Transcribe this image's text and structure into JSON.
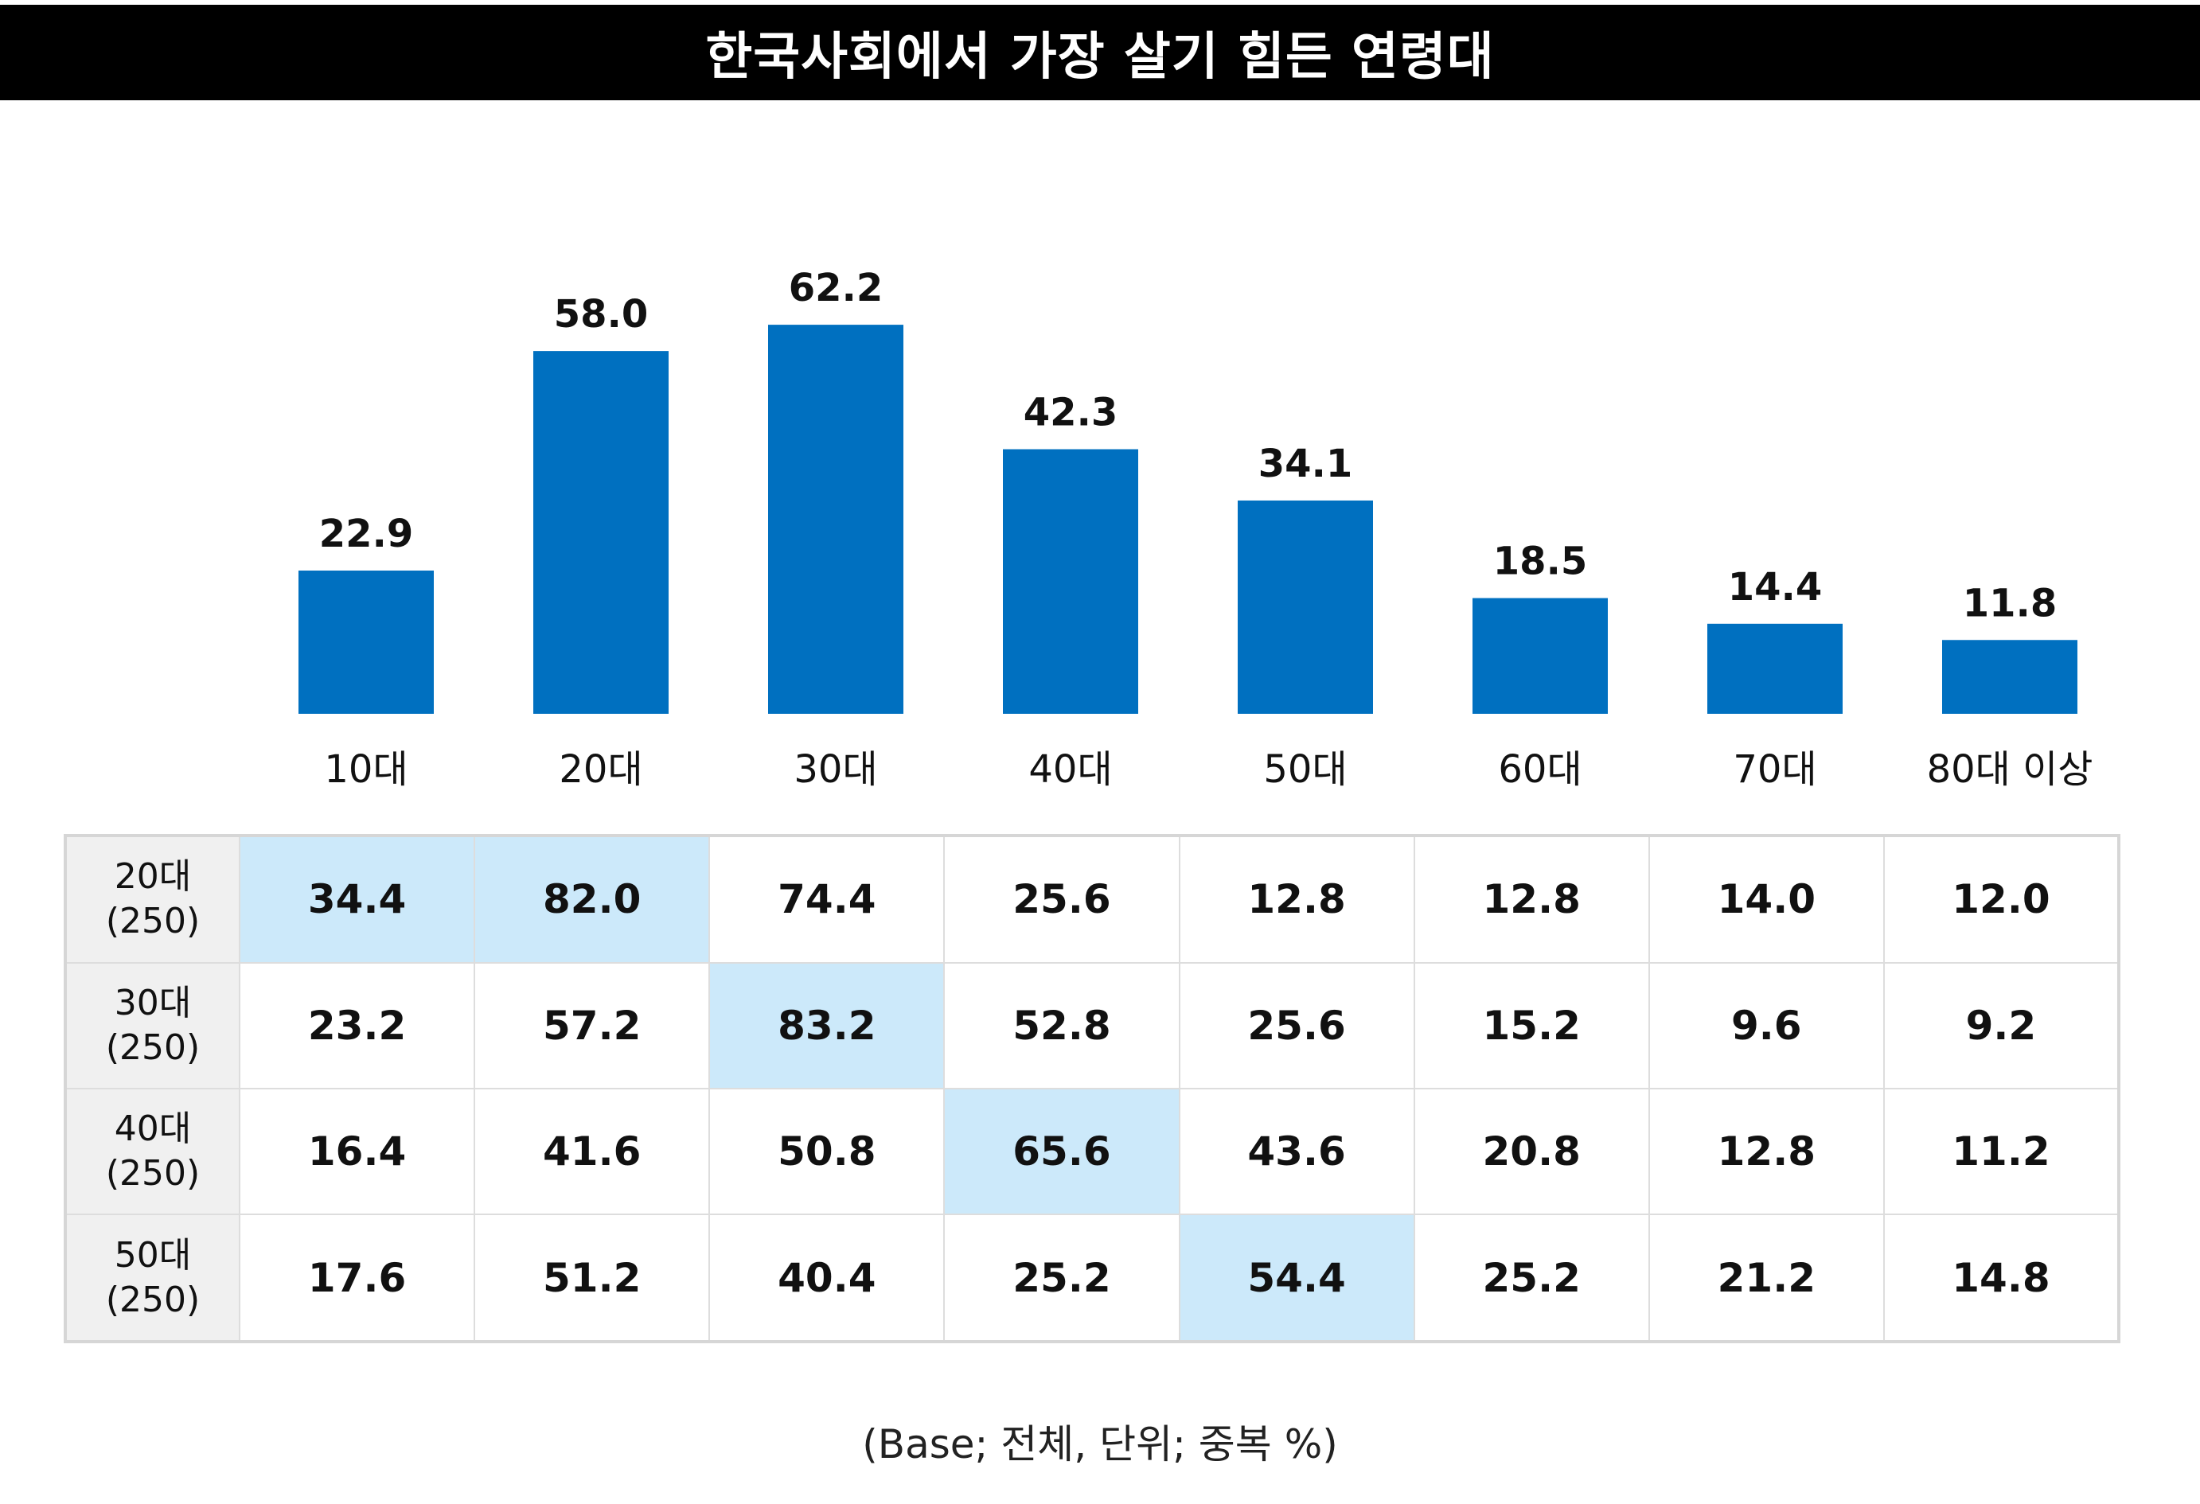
{
  "title": "한국사회에서 가장 살기 힘든 연령대",
  "colors": {
    "bar": "#0070C0",
    "highlight": "#CCE9FA",
    "row_header_bg": "#F0F0F0",
    "title_bg": "#000000"
  },
  "chart_data": {
    "type": "bar",
    "categories": [
      "10대",
      "20대",
      "30대",
      "40대",
      "50대",
      "60대",
      "70대",
      "80대 이상"
    ],
    "values": [
      22.9,
      58.0,
      62.2,
      42.3,
      34.1,
      18.5,
      14.4,
      11.8
    ],
    "value_labels": [
      "22.9",
      "58.0",
      "62.2",
      "42.3",
      "34.1",
      "18.5",
      "14.4",
      "11.8"
    ],
    "title": "한국사회에서 가장 살기 힘든 연령대",
    "xlabel": "",
    "ylabel": "",
    "grid": false,
    "legend": "none"
  },
  "table": {
    "rows": [
      {
        "label": "20대",
        "base": "(250)",
        "values": [
          "34.4",
          "82.0",
          "74.4",
          "25.6",
          "12.8",
          "12.8",
          "14.0",
          "12.0"
        ],
        "highlight": [
          0,
          1
        ]
      },
      {
        "label": "30대",
        "base": "(250)",
        "values": [
          "23.2",
          "57.2",
          "83.2",
          "52.8",
          "25.6",
          "15.2",
          "9.6",
          "9.2"
        ],
        "highlight": [
          2
        ]
      },
      {
        "label": "40대",
        "base": "(250)",
        "values": [
          "16.4",
          "41.6",
          "50.8",
          "65.6",
          "43.6",
          "20.8",
          "12.8",
          "11.2"
        ],
        "highlight": [
          3
        ]
      },
      {
        "label": "50대",
        "base": "(250)",
        "values": [
          "17.6",
          "51.2",
          "40.4",
          "25.2",
          "54.4",
          "25.2",
          "21.2",
          "14.8"
        ],
        "highlight": [
          4
        ]
      }
    ]
  },
  "footnote": "(Base; 전체, 단위; 중복 %)"
}
